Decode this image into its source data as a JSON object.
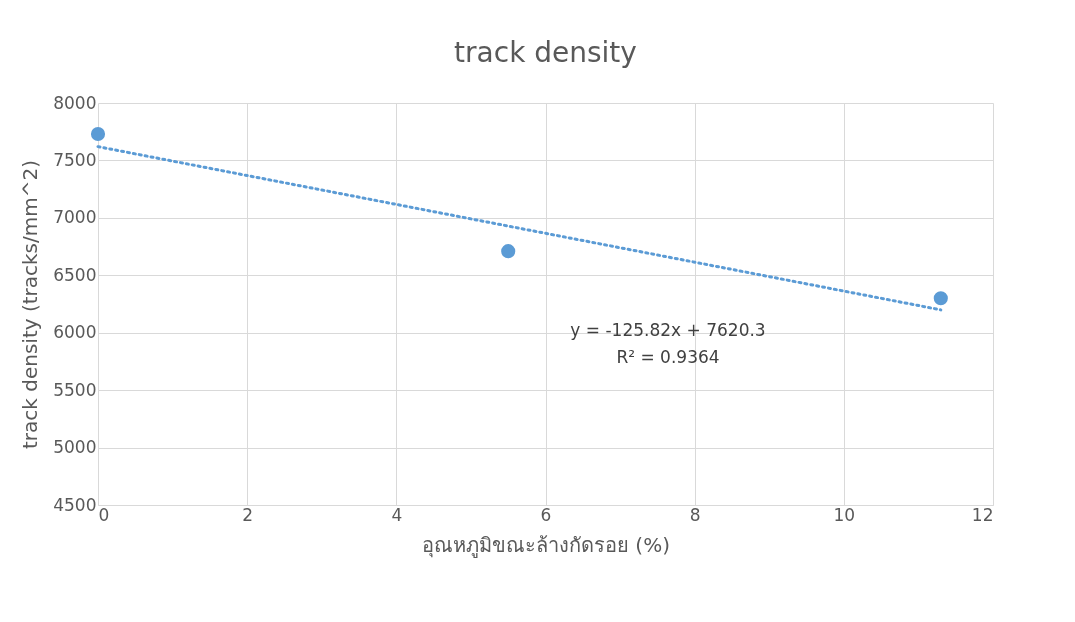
{
  "chart_data": {
    "type": "scatter",
    "title": "track density",
    "xlabel": "อุณหภูมิขณะล้างกัดรอย (%)",
    "ylabel": "track density (tracks/mm^2)",
    "series": [
      {
        "color": "#5b9bd5",
        "x": [
          0,
          5.5,
          11.3
        ],
        "values": [
          7730,
          6710,
          6300
        ],
        "marker": "circle"
      },
      {
        "type": "line",
        "color": "#5b9bd5",
        "x": [
          0,
          11.3
        ],
        "values": [
          7620,
          6199
        ],
        "line_style": "dotted"
      }
    ],
    "annotations": [
      "y = -125.82x + 7620.3",
      "R² = 0.9364"
    ],
    "xlim": [
      0,
      12
    ],
    "xticks": [
      0,
      2,
      4,
      6,
      8,
      10,
      12
    ],
    "ylim": [
      4500,
      8000
    ],
    "yticks": [
      4500,
      5000,
      5500,
      6000,
      6500,
      7000,
      7500,
      8000
    ],
    "grid": true
  }
}
